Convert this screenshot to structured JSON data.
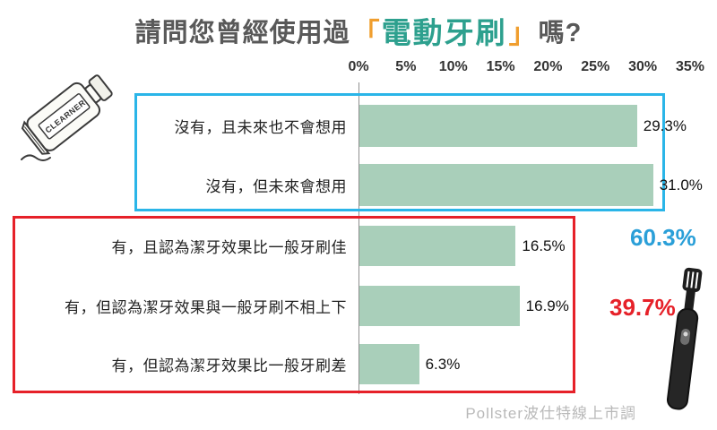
{
  "title": {
    "prefix": "請問您曾經使用過",
    "bracket_open": "「",
    "highlight": "電動牙刷",
    "bracket_close": "」",
    "suffix": "嗎?"
  },
  "chart_data": {
    "type": "bar",
    "orientation": "horizontal",
    "title": "請問您曾經使用過「電動牙刷」嗎?",
    "categories": [
      "沒有，且未來也不會想用",
      "沒有，但未來會想用",
      "有，且認為潔牙效果比一般牙刷佳",
      "有，但認為潔牙效果與一般牙刷不相上下",
      "有，但認為潔牙效果比一般牙刷差"
    ],
    "values": [
      29.3,
      31.0,
      16.5,
      16.9,
      6.3
    ],
    "value_labels": [
      "29.3%",
      "31.0%",
      "16.5%",
      "16.9%",
      "6.3%"
    ],
    "x_ticks": [
      "0%",
      "5%",
      "10%",
      "15%",
      "20%",
      "25%",
      "30%",
      "35%"
    ],
    "xlim": [
      0,
      35
    ],
    "grid": false,
    "bar_color": "#a9cfba",
    "groups": [
      {
        "name": "never-used-group",
        "label": "60.3%",
        "color": "#2a9fd8",
        "rows": [
          0,
          1
        ]
      },
      {
        "name": "have-used-group",
        "label": "39.7%",
        "color": "#e62129",
        "rows": [
          2,
          3,
          4
        ]
      }
    ]
  },
  "watermark": "Pollster波仕特線上市調",
  "icons": {
    "toothpaste_text": "CLEARNER",
    "toothpaste_illustration": "toothpaste-tube-icon",
    "toothbrush_illustration": "electric-toothbrush-icon"
  }
}
